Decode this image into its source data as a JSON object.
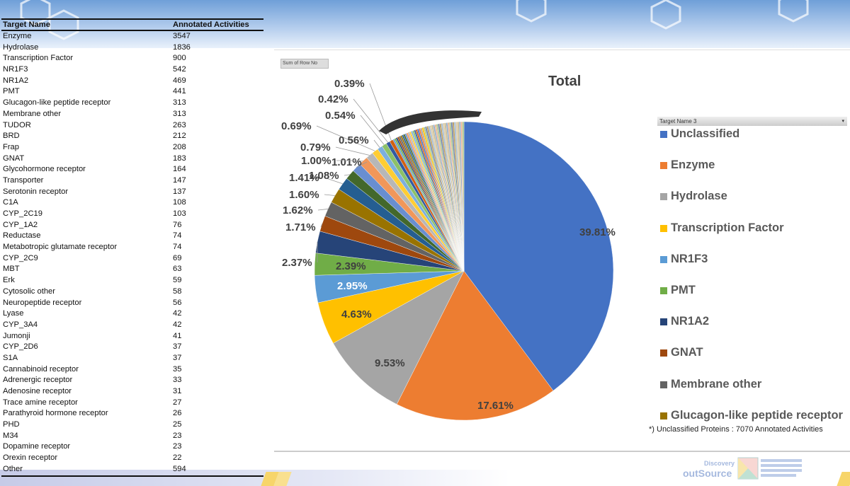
{
  "table": {
    "headers": [
      "Target Name",
      "Annotated Activities"
    ],
    "rows": [
      [
        "Enzyme",
        "3547"
      ],
      [
        "Hydrolase",
        "1836"
      ],
      [
        "Transcription Factor",
        "900"
      ],
      [
        "NR1F3",
        "542"
      ],
      [
        "NR1A2",
        "469"
      ],
      [
        "PMT",
        "441"
      ],
      [
        "Glucagon-like peptide receptor",
        "313"
      ],
      [
        "Membrane other",
        "313"
      ],
      [
        "TUDOR",
        "263"
      ],
      [
        "BRD",
        "212"
      ],
      [
        "Frap",
        "208"
      ],
      [
        "GNAT",
        "183"
      ],
      [
        "Glycohormone receptor",
        "164"
      ],
      [
        "Transporter",
        "147"
      ],
      [
        "Serotonin receptor",
        "137"
      ],
      [
        "C1A",
        "108"
      ],
      [
        "CYP_2C19",
        "103"
      ],
      [
        "CYP_1A2",
        "76"
      ],
      [
        "Reductase",
        "74"
      ],
      [
        "Metabotropic glutamate receptor",
        "74"
      ],
      [
        "CYP_2C9",
        "69"
      ],
      [
        "MBT",
        "63"
      ],
      [
        "Erk",
        "59"
      ],
      [
        "Cytosolic other",
        "58"
      ],
      [
        "Neuropeptide receptor",
        "56"
      ],
      [
        "Lyase",
        "42"
      ],
      [
        "CYP_3A4",
        "42"
      ],
      [
        "Jumonji",
        "41"
      ],
      [
        "CYP_2D6",
        "37"
      ],
      [
        "S1A",
        "37"
      ],
      [
        "Cannabinoid receptor",
        "35"
      ],
      [
        "Adrenergic receptor",
        "33"
      ],
      [
        "Adenosine receptor",
        "31"
      ],
      [
        "Trace amine receptor",
        "27"
      ],
      [
        "Parathyroid hormone receptor",
        "26"
      ],
      [
        "PHD",
        "25"
      ],
      [
        "M34",
        "23"
      ],
      [
        "Dopamine receptor",
        "23"
      ],
      [
        "Orexin receptor",
        "22"
      ],
      [
        "Other",
        "594"
      ]
    ]
  },
  "pivot_button": "Sum of Row No",
  "legend_filter": "Target Name 3",
  "footnote": "*) Unclassified Proteins : 7070 Annotated Activities",
  "chart_data": {
    "type": "pie",
    "title": "Total",
    "unit": "%",
    "start": "12 o'clock, clockwise",
    "slices": [
      39.81,
      17.61,
      9.53,
      4.63,
      2.95,
      2.39,
      2.37,
      1.71,
      1.62,
      1.6,
      1.41,
      1.08,
      1.01,
      1.0,
      0.79,
      0.69,
      0.56,
      0.54,
      0.42,
      0.39
    ],
    "labels": [
      "39.81%",
      "17.61%",
      "9.53%",
      "4.63%",
      "2.95%",
      "2.39%",
      "2.37%",
      "1.71%",
      "1.62%",
      "1.60%",
      "1.41%",
      "1.08%",
      "1.01%",
      "1.00%",
      "0.79%",
      "0.69%",
      "0.56%",
      "0.54%",
      "0.42%",
      "0.39%"
    ],
    "legend": [
      "Unclassified",
      "Enzyme",
      "Hydrolase",
      "Transcription Factor",
      "NR1F3",
      "PMT",
      "NR1A2",
      "GNAT",
      "Membrane other",
      "Glucagon-like peptide receptor"
    ],
    "legend_position": "right",
    "colors": [
      "#4472C4",
      "#ED7D31",
      "#A5A5A5",
      "#FFC000",
      "#5B9BD5",
      "#70AD47",
      "#264478",
      "#9E480E",
      "#636363",
      "#997300",
      "#255E91",
      "#43682B",
      "#698ED0",
      "#F1975A",
      "#B7B7B7",
      "#FFCD33",
      "#7CAFDD",
      "#8CC168",
      "#335AA1",
      "#D26012"
    ]
  }
}
